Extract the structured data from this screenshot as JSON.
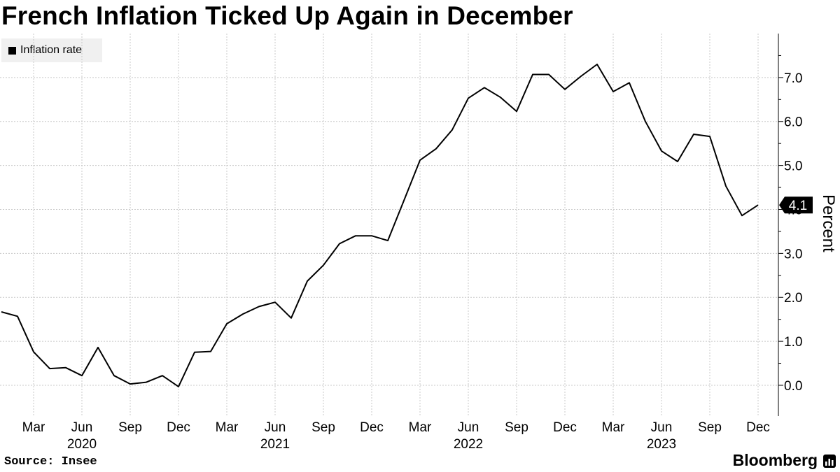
{
  "title": "French Inflation Ticked Up Again in December",
  "legend": {
    "label": "Inflation rate",
    "color": "#000000"
  },
  "source": "Source: Insee",
  "brand": "Bloomberg",
  "brand_icon": "bloomberg-terminal-icon",
  "chart_data": {
    "type": "line",
    "title": "French Inflation Ticked Up Again in December",
    "xlabel": "",
    "ylabel": "Percent",
    "ylim": [
      -0.7,
      8.0
    ],
    "yticks": [
      0,
      1,
      2,
      3,
      4,
      5,
      6,
      7
    ],
    "ytick_labels": [
      "0.0",
      "1.0",
      "2.0",
      "3.0",
      "4.0",
      "5.0",
      "6.0",
      "7.0"
    ],
    "grid": true,
    "legend_position": "top-left",
    "x": [
      "2020-01",
      "2020-02",
      "2020-03",
      "2020-04",
      "2020-05",
      "2020-06",
      "2020-07",
      "2020-08",
      "2020-09",
      "2020-10",
      "2020-11",
      "2020-12",
      "2021-01",
      "2021-02",
      "2021-03",
      "2021-04",
      "2021-05",
      "2021-06",
      "2021-07",
      "2021-08",
      "2021-09",
      "2021-10",
      "2021-11",
      "2021-12",
      "2022-01",
      "2022-02",
      "2022-03",
      "2022-04",
      "2022-05",
      "2022-06",
      "2022-07",
      "2022-08",
      "2022-09",
      "2022-10",
      "2022-11",
      "2022-12",
      "2023-01",
      "2023-02",
      "2023-03",
      "2023-04",
      "2023-05",
      "2023-06",
      "2023-07",
      "2023-08",
      "2023-09",
      "2023-10",
      "2023-11",
      "2023-12"
    ],
    "x_tick_labels": [
      "Mar",
      "Jun",
      "Sep",
      "Dec",
      "Mar",
      "Jun",
      "Sep",
      "Dec",
      "Mar",
      "Jun",
      "Sep",
      "Dec",
      "Mar",
      "Jun",
      "Sep",
      "Dec"
    ],
    "x_tick_months": [
      "2020-03",
      "2020-06",
      "2020-09",
      "2020-12",
      "2021-03",
      "2021-06",
      "2021-09",
      "2021-12",
      "2022-03",
      "2022-06",
      "2022-09",
      "2022-12",
      "2023-03",
      "2023-06",
      "2023-09",
      "2023-12"
    ],
    "x_year_labels": [
      "2020",
      "2021",
      "2022",
      "2023"
    ],
    "x_year_label_months": [
      "2020-06",
      "2021-06",
      "2022-06",
      "2023-06"
    ],
    "series": [
      {
        "name": "Inflation rate",
        "color": "#000000",
        "values": [
          1.67,
          1.57,
          0.76,
          0.38,
          0.4,
          0.22,
          0.86,
          0.22,
          0.03,
          0.07,
          0.22,
          -0.03,
          0.75,
          0.77,
          1.4,
          1.62,
          1.79,
          1.89,
          1.53,
          2.37,
          2.73,
          3.22,
          3.4,
          3.4,
          3.29,
          4.2,
          5.12,
          5.38,
          5.81,
          6.53,
          6.77,
          6.55,
          6.23,
          7.07,
          7.07,
          6.73,
          7.03,
          7.3,
          6.68,
          6.88,
          6.0,
          5.33,
          5.09,
          5.71,
          5.66,
          4.53,
          3.86,
          4.1
        ]
      }
    ],
    "last_value_label": "4.1"
  }
}
